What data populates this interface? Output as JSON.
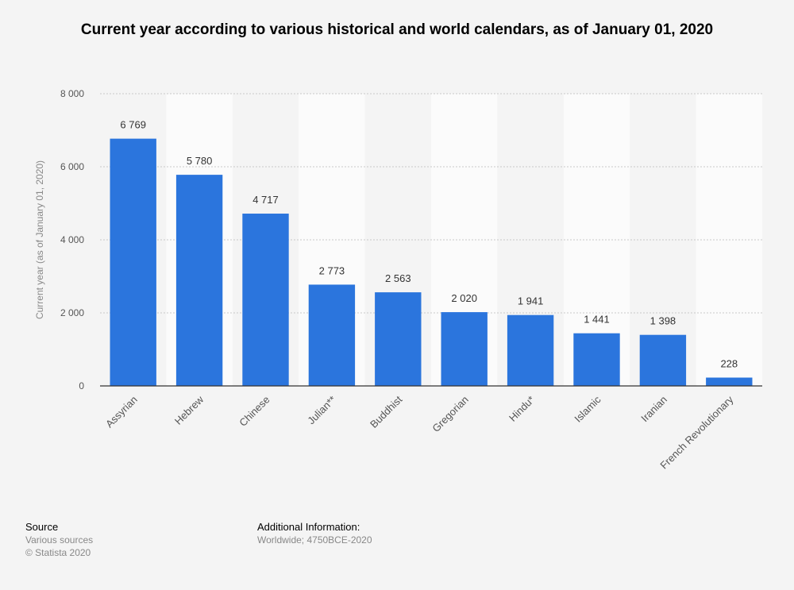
{
  "chart_data": {
    "type": "bar",
    "title": "Current year according to various historical and world calendars, as of January 01, 2020",
    "ylabel": "Current year (as of January 01, 2020)",
    "xlabel": "",
    "categories": [
      "Assyrian",
      "Hebrew",
      "Chinese",
      "Julian**",
      "Buddhist",
      "Gregorian",
      "Hindu*",
      "Islamic",
      "Iranian",
      "French Revolutionary"
    ],
    "values": [
      6769,
      5780,
      4717,
      2773,
      2563,
      2020,
      1941,
      1441,
      1398,
      228
    ],
    "value_labels": [
      "6 769",
      "5 780",
      "4 717",
      "2 773",
      "2 563",
      "2 020",
      "1 941",
      "1 441",
      "1 398",
      "228"
    ],
    "ylim": [
      0,
      8000
    ],
    "yticks": [
      0,
      2000,
      4000,
      6000,
      8000
    ],
    "ytick_labels": [
      "0",
      "2 000",
      "4 000",
      "6 000",
      "8 000"
    ],
    "grid": true,
    "bar_color": "#2b75dd"
  },
  "footer": {
    "source_heading": "Source",
    "source_line": "Various sources",
    "copyright": "© Statista 2020",
    "info_heading": "Additional Information:",
    "info_line": "Worldwide; 4750BCE-2020"
  }
}
